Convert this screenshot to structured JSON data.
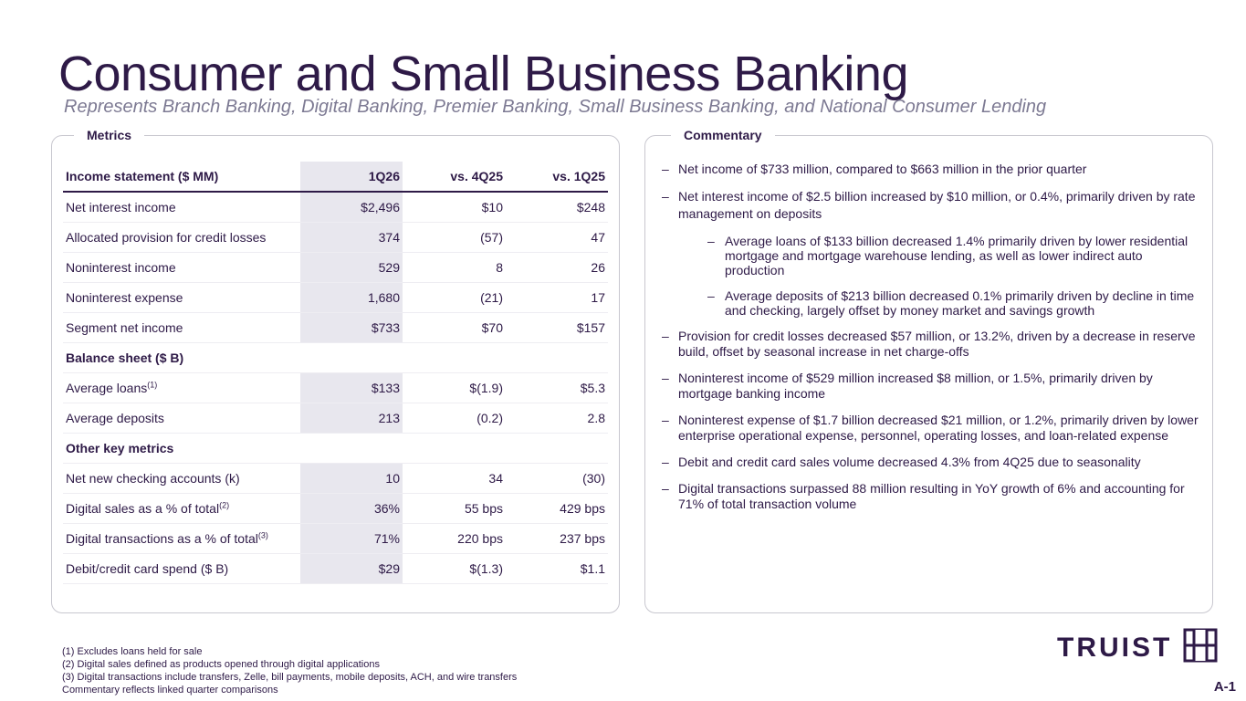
{
  "header": {
    "title": "Consumer and Small Business Banking",
    "subtitle": "Represents Branch Banking, Digital Banking, Premier Banking, Small Business Banking, and National Consumer Lending"
  },
  "metrics": {
    "panel_label": "Metrics",
    "columns": [
      "Income statement ($ MM)",
      "1Q26",
      "vs. 4Q25",
      "vs. 1Q25"
    ],
    "rows": [
      {
        "label": "Net interest income",
        "sup": "",
        "v1": "$2,496",
        "v2": "$10",
        "v3": "$248"
      },
      {
        "label": "Allocated provision for credit losses",
        "sup": "",
        "v1": "374",
        "v2": "(57)",
        "v3": "47"
      },
      {
        "label": "Noninterest income",
        "sup": "",
        "v1": "529",
        "v2": "8",
        "v3": "26"
      },
      {
        "label": "Noninterest expense",
        "sup": "",
        "v1": "1,680",
        "v2": "(21)",
        "v3": "17"
      },
      {
        "label": "Segment net income",
        "sup": "",
        "v1": "$733",
        "v2": "$70",
        "v3": "$157"
      }
    ],
    "balance_header": "Balance sheet ($ B)",
    "balance_rows": [
      {
        "label": "Average loans",
        "sup": "(1)",
        "v1": "$133",
        "v2": "$(1.9)",
        "v3": "$5.3"
      },
      {
        "label": "Average deposits",
        "sup": "",
        "v1": "213",
        "v2": "(0.2)",
        "v3": "2.8"
      }
    ],
    "other_header": "Other key metrics",
    "other_rows": [
      {
        "label": "Net new checking accounts (k)",
        "sup": "",
        "v1": "10",
        "v2": "34",
        "v3": "(30)"
      },
      {
        "label": "Digital sales as a % of total",
        "sup": "(2)",
        "v1": "36%",
        "v2": "55 bps",
        "v3": "429 bps"
      },
      {
        "label": "Digital transactions as a % of total",
        "sup": "(3)",
        "v1": "71%",
        "v2": "220 bps",
        "v3": "237 bps"
      },
      {
        "label": "Debit/credit card spend ($ B)",
        "sup": "",
        "v1": "$29",
        "v2": "$(1.3)",
        "v3": "$1.1"
      }
    ]
  },
  "commentary": {
    "panel_label": "Commentary",
    "items": [
      "Net income of $733 million, compared to $663 million in the prior quarter",
      "Net interest income of $2.5 billion increased by $10 million, or 0.4%, primarily driven by rate management on deposits",
      "Average loans of $133 billion decreased 1.4% primarily driven by lower residential mortgage and mortgage warehouse lending, as well as lower indirect auto production",
      "Average deposits of $213 billion decreased 0.1% primarily driven by decline in time and checking, largely offset by money market and savings growth",
      "Provision for credit losses decreased $57 million, or 13.2%, driven by a decrease in reserve build, offset by seasonal increase in net charge-offs",
      "Noninterest income of $529 million increased $8 million, or 1.5%, primarily driven by mortgage banking income",
      "Noninterest expense of $1.7 billion decreased $21 million, or 1.2%, primarily driven by lower enterprise operational expense, personnel, operating losses, and loan-related expense",
      "Debit and credit card sales volume decreased 4.3% from 4Q25 due to seasonality",
      "Digital transactions surpassed 88 million resulting in YoY growth of 6% and accounting for 71% of total transaction volume"
    ]
  },
  "footnotes": [
    "(1)  Excludes loans held for sale",
    "(2)  Digital sales defined as products opened through digital applications",
    "(3)  Digital transactions include transfers, Zelle, bill payments, mobile deposits, ACH, and wire transfers",
    "Commentary reflects linked quarter comparisons"
  ],
  "brand": {
    "logo_text": "TRUIST",
    "logo_icon": "truist-mark-icon",
    "color": "#2e1a47"
  },
  "page_number": "A-1"
}
